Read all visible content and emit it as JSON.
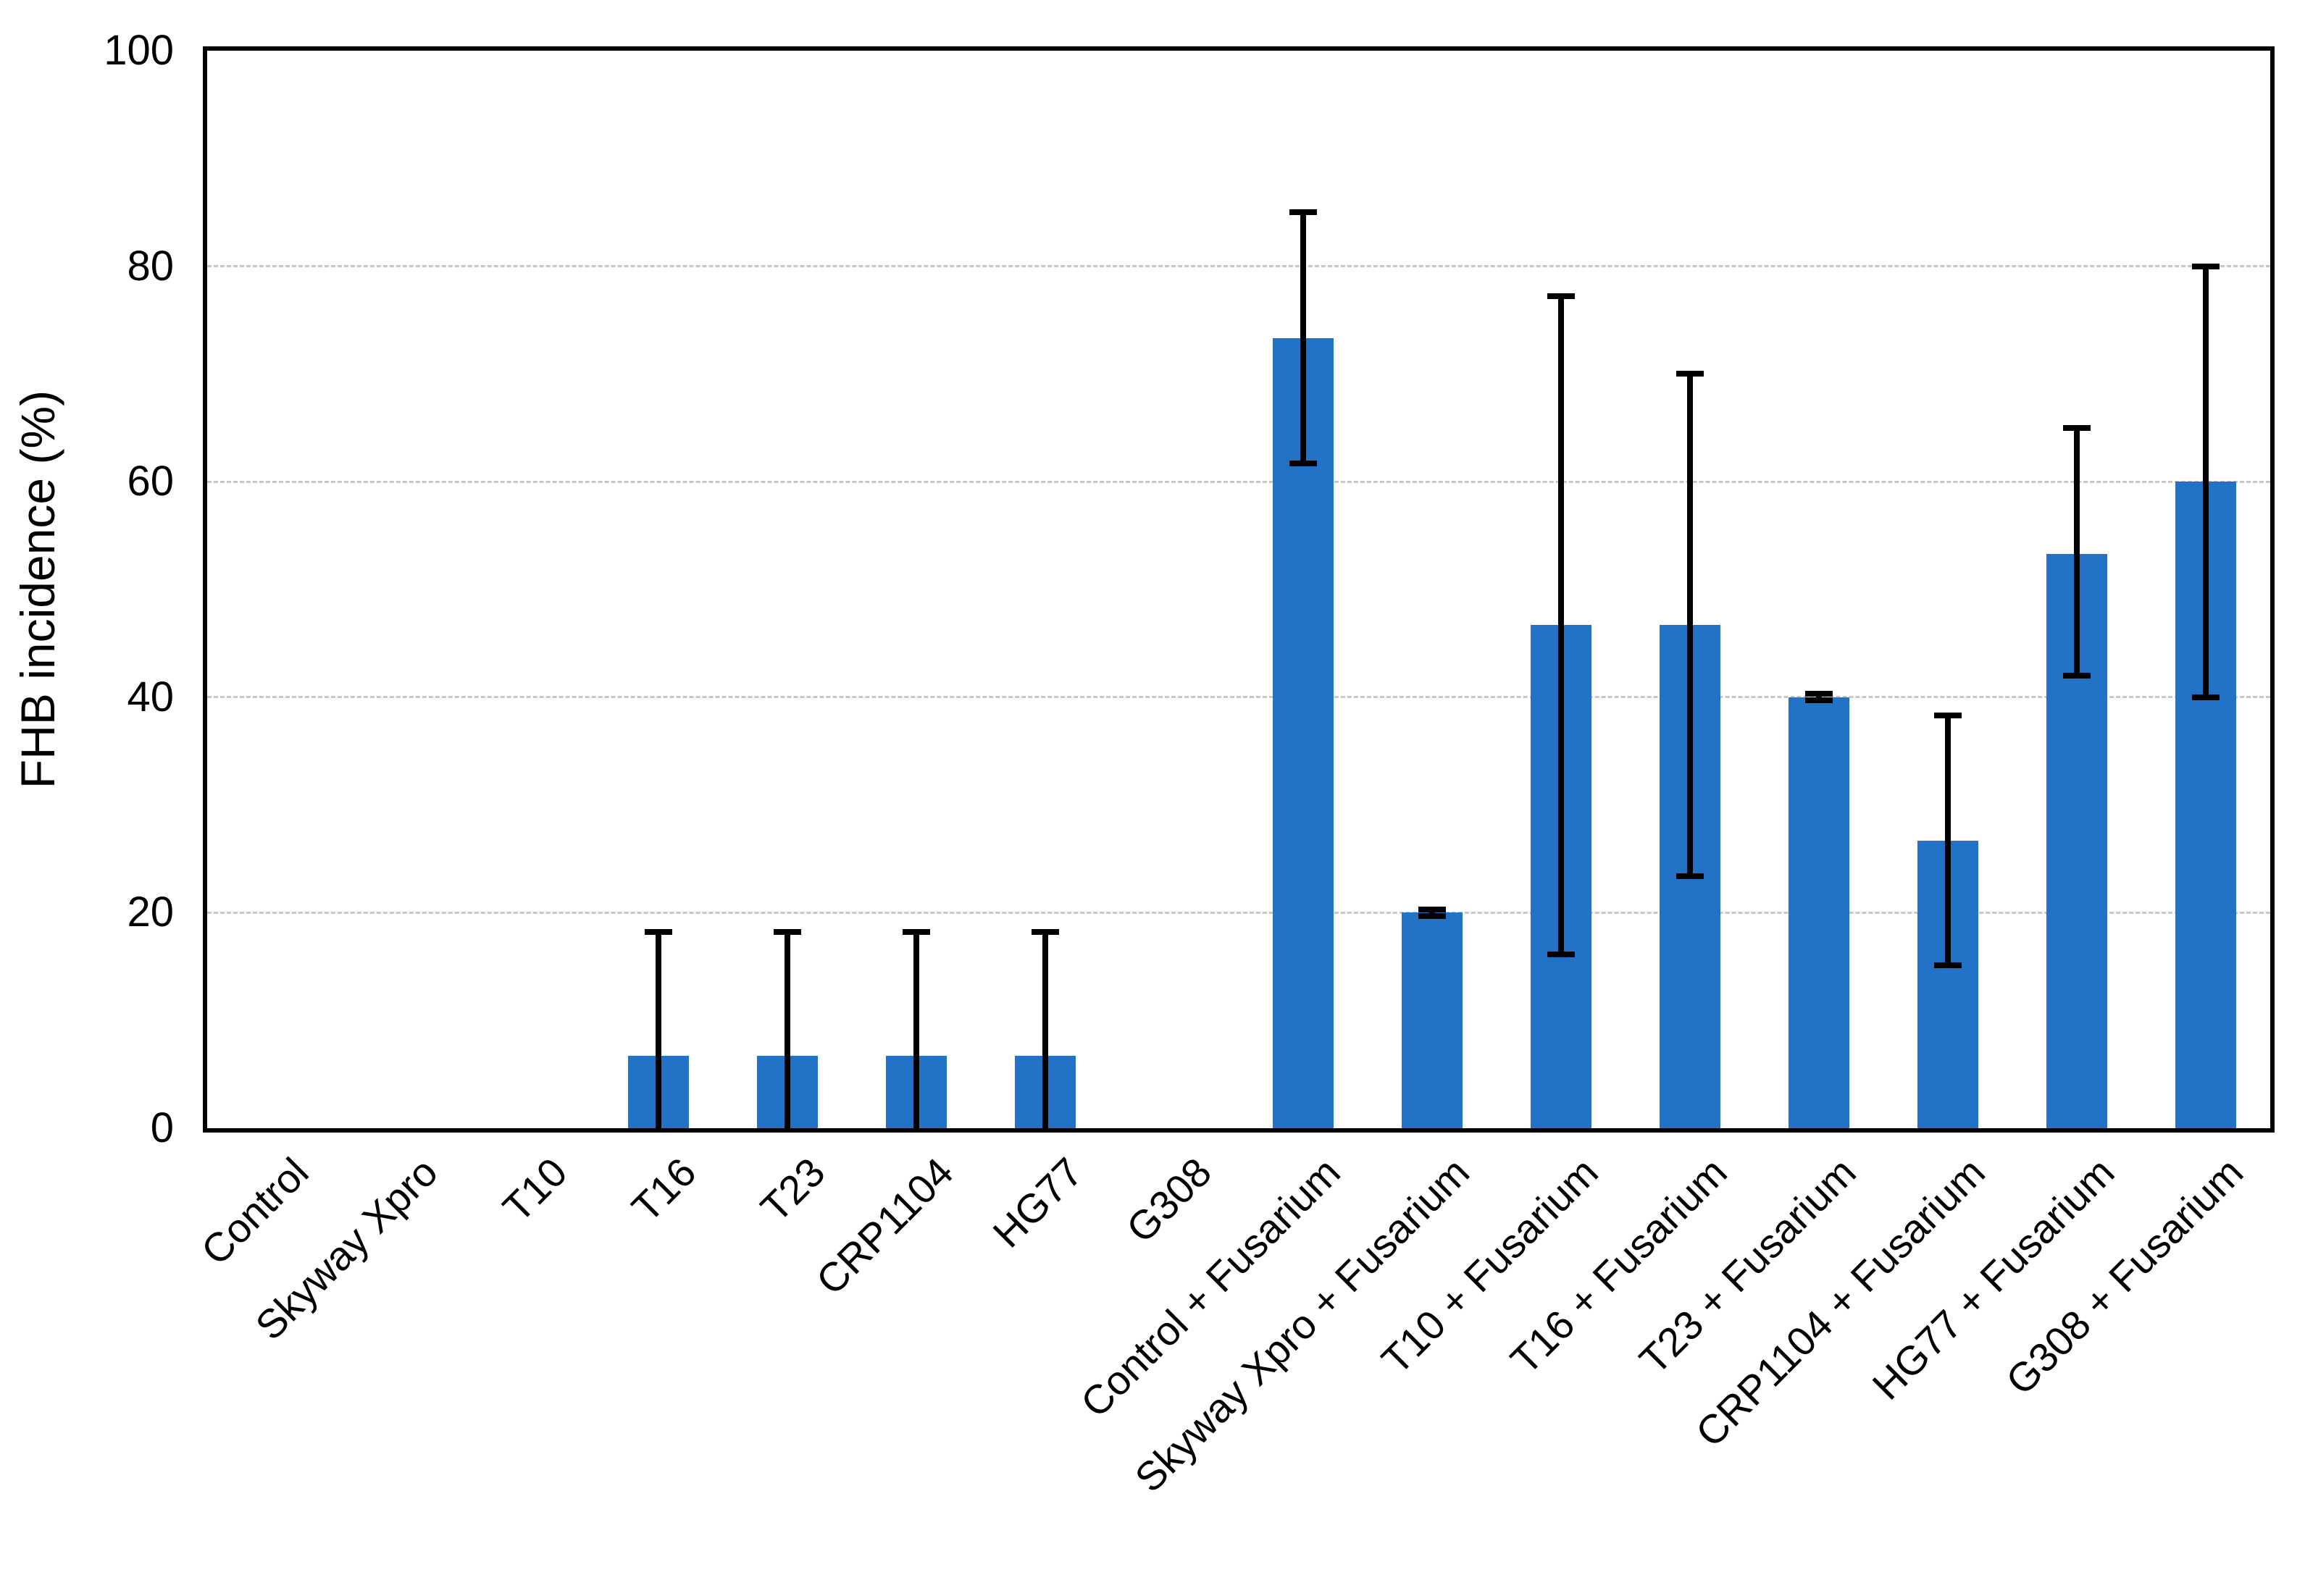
{
  "page": {
    "background": "#ffffff",
    "text_color": "#000000"
  },
  "chart_data": {
    "type": "bar",
    "title": "",
    "xlabel": "",
    "ylabel": "FHB incidence (%)",
    "ylim": [
      0,
      100
    ],
    "yticks": [
      0,
      20,
      40,
      60,
      80,
      100
    ],
    "grid": "horizontal-dashed-at-20-40-60-80",
    "legend": "none",
    "bar_color": "#2273c8",
    "error_bar_color": "#000000",
    "gridline_color": "#c7c7c7",
    "categories": [
      "Control",
      "Skyway Xpro",
      "T10",
      "T16",
      "T23",
      "CRP1104",
      "HG77",
      "G308",
      "Control + Fusarium",
      "Skyway Xpro + Fusarium",
      "T10 + Fusarium",
      "T16 + Fusarium",
      "T23 + Fusarium",
      "CRP1104 + Fusarium",
      "HG77 + Fusarium",
      "G308 + Fusarium"
    ],
    "series": [
      {
        "name": "FHB incidence",
        "values": [
          0,
          0,
          0,
          6.7,
          6.7,
          6.7,
          6.7,
          0,
          73.3,
          20.0,
          46.7,
          46.7,
          40.0,
          26.7,
          53.3,
          60.0
        ],
        "error_low": [
          null,
          null,
          null,
          0,
          0,
          0,
          0,
          null,
          61.7,
          19.7,
          16.1,
          23.4,
          39.7,
          15.1,
          42.0,
          40.0
        ],
        "error_high": [
          null,
          null,
          null,
          18.2,
          18.2,
          18.2,
          18.2,
          null,
          85.0,
          20.3,
          77.2,
          70.0,
          40.3,
          38.3,
          65.0,
          80.0
        ]
      }
    ]
  }
}
